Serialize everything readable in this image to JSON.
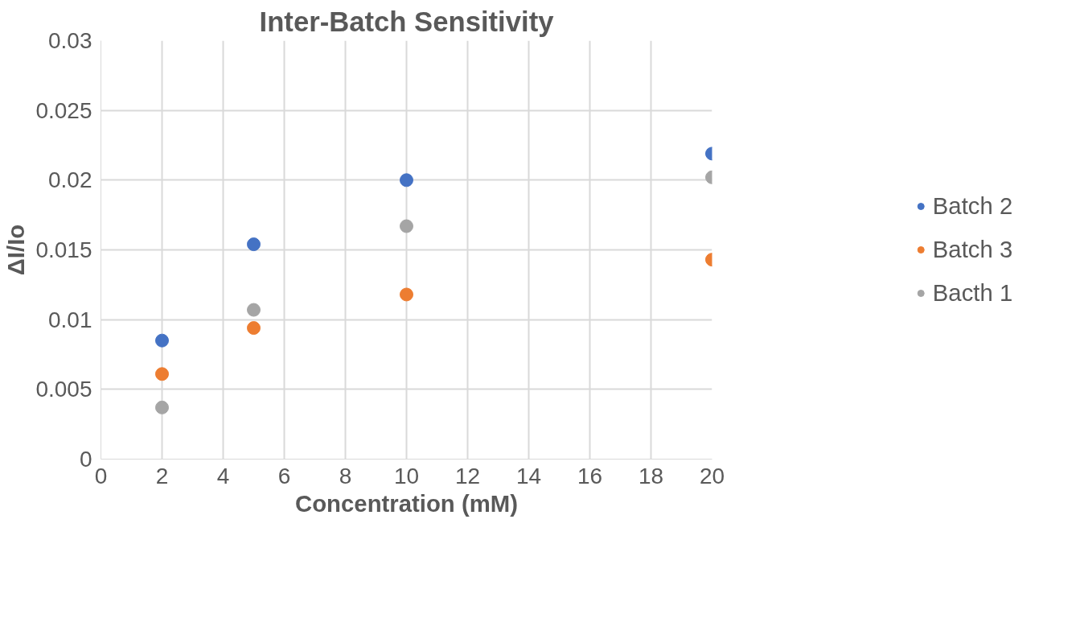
{
  "chart_data": {
    "type": "scatter",
    "title": "Inter-Batch Sensitivity",
    "xlabel": "Concentration (mM)",
    "ylabel": "ΔI/Io",
    "x": [
      2,
      5,
      10,
      20
    ],
    "series": [
      {
        "name": "Batch 2",
        "color": "#4472c4",
        "values": [
          0.0085,
          0.0154,
          0.02,
          0.0219
        ]
      },
      {
        "name": "Batch 3",
        "color": "#ed7d31",
        "values": [
          0.0061,
          0.0094,
          0.0118,
          0.0143
        ]
      },
      {
        "name": "Bacth 1",
        "color": "#a5a5a5",
        "values": [
          0.0037,
          0.0107,
          0.0167,
          0.0202
        ]
      }
    ],
    "xlim": [
      0,
      20
    ],
    "xticks": [
      0,
      2,
      4,
      6,
      8,
      10,
      12,
      14,
      16,
      18,
      20
    ],
    "ylim": [
      0,
      0.03
    ],
    "yticks": [
      0,
      0.005,
      0.01,
      0.015,
      0.02,
      0.025,
      0.03
    ],
    "grid": true,
    "legend": "right",
    "marker": "circle"
  }
}
